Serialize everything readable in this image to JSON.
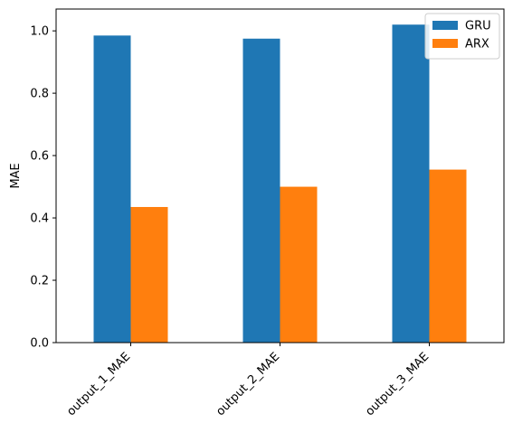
{
  "chart_data": {
    "type": "bar",
    "title": "",
    "xlabel": "",
    "ylabel": "MAE",
    "categories": [
      "output_1_MAE",
      "output_2_MAE",
      "output_3_MAE"
    ],
    "series": [
      {
        "name": "GRU",
        "color": "#1f77b4",
        "values": [
          0.985,
          0.975,
          1.02
        ]
      },
      {
        "name": "ARX",
        "color": "#ff7f0e",
        "values": [
          0.435,
          0.5,
          0.555
        ]
      }
    ],
    "ylim": [
      0,
      1.07
    ],
    "yticks": [
      "0.0",
      "0.2",
      "0.4",
      "0.6",
      "0.8",
      "1.0"
    ],
    "grid": false,
    "legend_position": "top-right"
  }
}
